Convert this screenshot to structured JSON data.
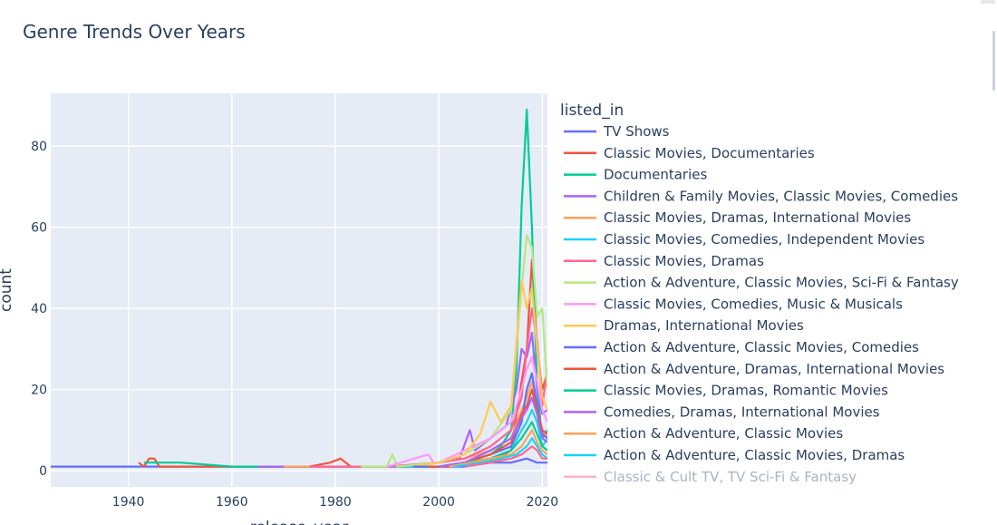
{
  "chart_data": {
    "type": "line",
    "title": "Genre Trends Over Years",
    "xlabel": "release_year",
    "ylabel": "count",
    "xlim": [
      1925,
      2021
    ],
    "ylim": [
      -4,
      93
    ],
    "x_ticks": [
      1940,
      1960,
      1980,
      2000,
      2020
    ],
    "y_ticks": [
      0,
      20,
      40,
      60,
      80
    ],
    "grid": true,
    "legend_title": "listed_in",
    "legend_position": "right",
    "series": [
      {
        "name": "TV Shows",
        "color": "#636efa",
        "points": [
          [
            1925,
            1
          ],
          [
            1960,
            1
          ],
          [
            2000,
            1
          ],
          [
            2005,
            1
          ],
          [
            2010,
            2
          ],
          [
            2014,
            2
          ],
          [
            2017,
            3
          ],
          [
            2019,
            2
          ],
          [
            2021,
            2
          ]
        ]
      },
      {
        "name": "Classic Movies, Documentaries",
        "color": "#EF553B",
        "points": [
          [
            1942,
            2
          ],
          [
            1943,
            1
          ],
          [
            1944,
            3
          ],
          [
            1945,
            3
          ],
          [
            1946,
            1
          ],
          [
            1950,
            1
          ],
          [
            1960,
            1
          ],
          [
            1975,
            1
          ],
          [
            1979,
            2
          ],
          [
            1981,
            3
          ],
          [
            1983,
            1
          ],
          [
            1990,
            1
          ],
          [
            2000,
            1
          ],
          [
            2005,
            2
          ],
          [
            2010,
            2
          ],
          [
            2014,
            5
          ],
          [
            2016,
            22
          ],
          [
            2017,
            30
          ],
          [
            2018,
            52
          ],
          [
            2019,
            30
          ],
          [
            2020,
            20
          ],
          [
            2021,
            24
          ]
        ]
      },
      {
        "name": "Documentaries",
        "color": "#00cc96",
        "points": [
          [
            1943,
            2
          ],
          [
            1950,
            2
          ],
          [
            1960,
            1
          ],
          [
            1970,
            1
          ],
          [
            1980,
            1
          ],
          [
            1990,
            1
          ],
          [
            2000,
            1
          ],
          [
            2005,
            2
          ],
          [
            2010,
            4
          ],
          [
            2012,
            6
          ],
          [
            2014,
            10
          ],
          [
            2015,
            25
          ],
          [
            2016,
            65
          ],
          [
            2017,
            89
          ],
          [
            2018,
            60
          ],
          [
            2019,
            20
          ],
          [
            2020,
            8
          ],
          [
            2021,
            10
          ]
        ]
      },
      {
        "name": "Children & Family Movies, Classic Movies, Comedies",
        "color": "#ab63fa",
        "points": [
          [
            1965,
            1
          ],
          [
            1980,
            1
          ],
          [
            1995,
            1
          ],
          [
            2000,
            2
          ],
          [
            2004,
            3
          ],
          [
            2006,
            10
          ],
          [
            2007,
            5
          ],
          [
            2010,
            8
          ],
          [
            2013,
            11
          ],
          [
            2015,
            20
          ],
          [
            2016,
            30
          ],
          [
            2017,
            28
          ],
          [
            2018,
            34
          ],
          [
            2019,
            20
          ],
          [
            2020,
            14
          ],
          [
            2021,
            15
          ]
        ]
      },
      {
        "name": "Classic Movies, Dramas, International Movies",
        "color": "#FFA15A",
        "points": [
          [
            1970,
            1
          ],
          [
            1990,
            1
          ],
          [
            2000,
            2
          ],
          [
            2005,
            3
          ],
          [
            2010,
            5
          ],
          [
            2014,
            8
          ],
          [
            2016,
            15
          ],
          [
            2017,
            18
          ],
          [
            2018,
            22
          ],
          [
            2019,
            15
          ],
          [
            2020,
            10
          ],
          [
            2021,
            8
          ]
        ]
      },
      {
        "name": "Classic Movies, Comedies, Independent Movies",
        "color": "#19d3f3",
        "points": [
          [
            1980,
            1
          ],
          [
            2000,
            1
          ],
          [
            2005,
            2
          ],
          [
            2010,
            3
          ],
          [
            2014,
            5
          ],
          [
            2016,
            10
          ],
          [
            2017,
            12
          ],
          [
            2018,
            15
          ],
          [
            2019,
            12
          ],
          [
            2020,
            6
          ],
          [
            2021,
            8
          ]
        ]
      },
      {
        "name": "Classic Movies, Dramas",
        "color": "#FF6692",
        "points": [
          [
            1975,
            1
          ],
          [
            1990,
            1
          ],
          [
            2000,
            2
          ],
          [
            2005,
            3
          ],
          [
            2010,
            6
          ],
          [
            2014,
            10
          ],
          [
            2016,
            18
          ],
          [
            2017,
            30
          ],
          [
            2018,
            40
          ],
          [
            2019,
            32
          ],
          [
            2020,
            16
          ],
          [
            2021,
            25
          ]
        ]
      },
      {
        "name": "Action & Adventure, Classic Movies, Sci-Fi & Fantasy",
        "color": "#B6E880",
        "points": [
          [
            1985,
            1
          ],
          [
            1990,
            1
          ],
          [
            1991,
            4
          ],
          [
            1992,
            1
          ],
          [
            2000,
            2
          ],
          [
            2005,
            4
          ],
          [
            2010,
            8
          ],
          [
            2014,
            15
          ],
          [
            2015,
            30
          ],
          [
            2016,
            45
          ],
          [
            2017,
            58
          ],
          [
            2018,
            55
          ],
          [
            2019,
            38
          ],
          [
            2020,
            40
          ],
          [
            2021,
            20
          ]
        ]
      },
      {
        "name": "Classic Movies, Comedies, Music & Musicals",
        "color": "#FF97FF",
        "points": [
          [
            1990,
            1
          ],
          [
            1998,
            4
          ],
          [
            1999,
            2
          ],
          [
            2000,
            2
          ],
          [
            2005,
            5
          ],
          [
            2010,
            8
          ],
          [
            2014,
            12
          ],
          [
            2016,
            20
          ],
          [
            2017,
            25
          ],
          [
            2018,
            28
          ],
          [
            2019,
            22
          ],
          [
            2020,
            15
          ],
          [
            2021,
            12
          ]
        ]
      },
      {
        "name": "Dramas, International Movies",
        "color": "#FECB52",
        "points": [
          [
            1995,
            1
          ],
          [
            2000,
            2
          ],
          [
            2005,
            4
          ],
          [
            2008,
            9
          ],
          [
            2010,
            17
          ],
          [
            2012,
            12
          ],
          [
            2014,
            16
          ],
          [
            2016,
            47
          ],
          [
            2017,
            40
          ],
          [
            2018,
            45
          ],
          [
            2019,
            30
          ],
          [
            2020,
            18
          ],
          [
            2021,
            15
          ]
        ]
      },
      {
        "name": "Action & Adventure, Classic Movies, Comedies",
        "color": "#636efa",
        "points": [
          [
            1995,
            1
          ],
          [
            2000,
            1
          ],
          [
            2005,
            2
          ],
          [
            2010,
            4
          ],
          [
            2014,
            6
          ],
          [
            2016,
            12
          ],
          [
            2017,
            20
          ],
          [
            2018,
            24
          ],
          [
            2019,
            16
          ],
          [
            2020,
            9
          ],
          [
            2021,
            8
          ]
        ]
      },
      {
        "name": "Action & Adventure, Dramas, International Movies",
        "color": "#EF553B",
        "points": [
          [
            1998,
            1
          ],
          [
            2002,
            1
          ],
          [
            2005,
            2
          ],
          [
            2010,
            4
          ],
          [
            2014,
            7
          ],
          [
            2016,
            14
          ],
          [
            2017,
            16
          ],
          [
            2018,
            20
          ],
          [
            2019,
            15
          ],
          [
            2020,
            10
          ],
          [
            2021,
            9
          ]
        ]
      },
      {
        "name": "Classic Movies, Dramas, Romantic Movies",
        "color": "#00cc96",
        "points": [
          [
            2000,
            1
          ],
          [
            2005,
            2
          ],
          [
            2010,
            3
          ],
          [
            2014,
            5
          ],
          [
            2016,
            8
          ],
          [
            2017,
            10
          ],
          [
            2018,
            12
          ],
          [
            2019,
            9
          ],
          [
            2020,
            6
          ],
          [
            2021,
            5
          ]
        ]
      },
      {
        "name": "Comedies, Dramas, International Movies",
        "color": "#ab63fa",
        "points": [
          [
            2000,
            1
          ],
          [
            2005,
            2
          ],
          [
            2010,
            5
          ],
          [
            2014,
            8
          ],
          [
            2016,
            13
          ],
          [
            2017,
            15
          ],
          [
            2018,
            18
          ],
          [
            2019,
            14
          ],
          [
            2020,
            8
          ],
          [
            2021,
            7
          ]
        ]
      },
      {
        "name": "Action & Adventure, Classic Movies",
        "color": "#FFA15A",
        "points": [
          [
            2002,
            1
          ],
          [
            2006,
            2
          ],
          [
            2010,
            3
          ],
          [
            2014,
            4
          ],
          [
            2016,
            6
          ],
          [
            2017,
            8
          ],
          [
            2018,
            10
          ],
          [
            2019,
            7
          ],
          [
            2020,
            5
          ],
          [
            2021,
            4
          ]
        ]
      },
      {
        "name": "Action & Adventure, Classic Movies, Dramas",
        "color": "#19d3f3",
        "points": [
          [
            2003,
            1
          ],
          [
            2008,
            2
          ],
          [
            2012,
            3
          ],
          [
            2015,
            4
          ],
          [
            2017,
            6
          ],
          [
            2018,
            8
          ],
          [
            2019,
            6
          ],
          [
            2020,
            4
          ],
          [
            2021,
            3
          ]
        ]
      },
      {
        "name": "Classic & Cult TV, TV Sci-Fi & Fantasy",
        "color": "#FF6692",
        "points": [
          [
            2005,
            1
          ],
          [
            2010,
            2
          ],
          [
            2014,
            3
          ],
          [
            2016,
            4
          ],
          [
            2018,
            6
          ],
          [
            2019,
            5
          ],
          [
            2020,
            3
          ],
          [
            2021,
            3
          ]
        ]
      }
    ]
  }
}
